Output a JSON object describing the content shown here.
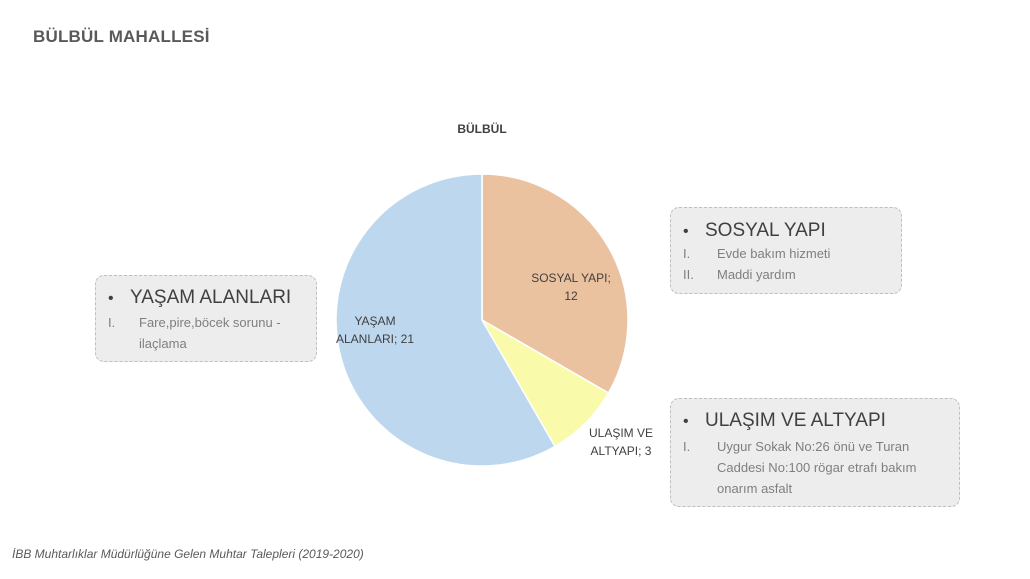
{
  "page_title": "BÜLBÜL MAHALLESİ",
  "source": "İBB Muhtarlıklar Müdürlüğüne Gelen Muhtar Talepleri (2019-2020)",
  "chart_data": {
    "type": "pie",
    "title": "BÜLBÜL",
    "slices": [
      {
        "label_lines": [
          "SOSYAL YAPI;",
          "12"
        ],
        "category": "SOSYAL YAPI",
        "value": 12,
        "color": "#ebc2a0"
      },
      {
        "label_lines": [
          "ULAŞIM VE",
          "ALTYAPI; 3"
        ],
        "category": "ULAŞIM VE ALTYAPI",
        "value": 3,
        "color": "#fafbaa"
      },
      {
        "label_lines": [
          "YAŞAM",
          "ALANLARI; 21"
        ],
        "category": "YAŞAM ALANLARI",
        "value": 21,
        "color": "#bdd7ee"
      }
    ],
    "start": "12 o'clock",
    "direction": "clockwise"
  },
  "callouts": {
    "sosyal": {
      "bullet": "•",
      "heading": "SOSYAL YAPI",
      "items": [
        {
          "num": "I.",
          "text": "Evde bakım hizmeti"
        },
        {
          "num": "II.",
          "text": "Maddi yardım"
        }
      ]
    },
    "yasam": {
      "bullet": "•",
      "heading": "YAŞAM ALANLARI",
      "items": [
        {
          "num": "I.",
          "text": "Fare,pire,böcek sorunu - ilaçlama"
        }
      ]
    },
    "ulasim": {
      "bullet": "•",
      "heading": "ULAŞIM VE ALTYAPI",
      "items": [
        {
          "num": "I.",
          "text": "Uygur Sokak No:26 önü ve Turan Caddesi No:100 rögar etrafı bakım onarım asfalt"
        }
      ]
    }
  }
}
